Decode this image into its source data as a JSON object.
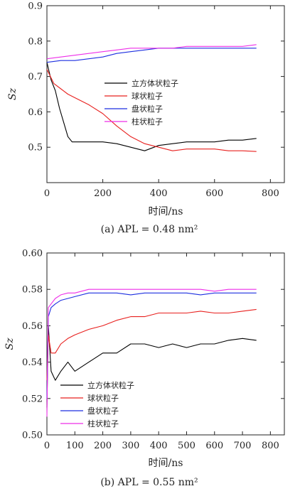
{
  "chart_data": [
    {
      "type": "line",
      "xlabel": "时间/ns",
      "ylabel": "Sz",
      "caption": "(a) APL = 0.48 nm²",
      "xlim": [
        0,
        850
      ],
      "ylim": [
        0.4,
        0.9
      ],
      "xticks": [
        "0",
        "200",
        "400",
        "600",
        "800"
      ],
      "yticks": [
        "0.5",
        "0.6",
        "0.7",
        "0.8",
        "0.9"
      ],
      "legend_position": "center-right",
      "series": [
        {
          "name": "立方体状粒子",
          "color": "#000000",
          "x": [
            0,
            15,
            30,
            45,
            60,
            75,
            90,
            110,
            130,
            160,
            200,
            250,
            300,
            350,
            400,
            450,
            500,
            550,
            600,
            650,
            700,
            750
          ],
          "y": [
            0.74,
            0.69,
            0.66,
            0.61,
            0.57,
            0.53,
            0.515,
            0.515,
            0.515,
            0.515,
            0.515,
            0.51,
            0.5,
            0.49,
            0.505,
            0.51,
            0.515,
            0.515,
            0.515,
            0.52,
            0.52,
            0.525
          ]
        },
        {
          "name": "球状粒子",
          "color": "#e8201e",
          "x": [
            0,
            25,
            50,
            75,
            100,
            150,
            200,
            250,
            300,
            350,
            400,
            450,
            500,
            550,
            600,
            650,
            700,
            750
          ],
          "y": [
            0.72,
            0.68,
            0.665,
            0.65,
            0.64,
            0.62,
            0.595,
            0.56,
            0.53,
            0.51,
            0.5,
            0.49,
            0.495,
            0.495,
            0.495,
            0.49,
            0.49,
            0.488
          ]
        },
        {
          "name": "盘状粒子",
          "color": "#1c2ee0",
          "x": [
            0,
            50,
            100,
            150,
            200,
            250,
            300,
            350,
            400,
            450,
            500,
            550,
            600,
            650,
            700,
            750
          ],
          "y": [
            0.74,
            0.745,
            0.745,
            0.75,
            0.755,
            0.765,
            0.77,
            0.775,
            0.78,
            0.78,
            0.78,
            0.78,
            0.78,
            0.78,
            0.78,
            0.78
          ]
        },
        {
          "name": "柱状粒子",
          "color": "#ee2ee8",
          "x": [
            0,
            50,
            100,
            150,
            200,
            250,
            300,
            350,
            400,
            450,
            500,
            550,
            600,
            650,
            700,
            750
          ],
          "y": [
            0.75,
            0.755,
            0.76,
            0.765,
            0.77,
            0.775,
            0.78,
            0.78,
            0.78,
            0.78,
            0.785,
            0.785,
            0.785,
            0.785,
            0.785,
            0.79
          ]
        }
      ]
    },
    {
      "type": "line",
      "xlabel": "时间/ns",
      "ylabel": "Sz",
      "caption": "(b) APL = 0.55 nm²",
      "xlim": [
        0,
        850
      ],
      "ylim": [
        0.5,
        0.6
      ],
      "xticks": [
        "0",
        "100",
        "200",
        "300",
        "400",
        "500",
        "600",
        "700",
        "800"
      ],
      "yticks": [
        "0.50",
        "0.52",
        "0.54",
        "0.56",
        "0.58",
        "0.60"
      ],
      "legend_position": "bottom-left",
      "series": [
        {
          "name": "立方体状粒子",
          "color": "#000000",
          "x": [
            0,
            5,
            15,
            30,
            50,
            75,
            100,
            150,
            200,
            250,
            300,
            350,
            400,
            450,
            500,
            550,
            600,
            650,
            700,
            750
          ],
          "y": [
            0.515,
            0.56,
            0.535,
            0.53,
            0.535,
            0.54,
            0.535,
            0.54,
            0.545,
            0.545,
            0.55,
            0.55,
            0.548,
            0.55,
            0.548,
            0.55,
            0.55,
            0.552,
            0.553,
            0.552
          ]
        },
        {
          "name": "球状粒子",
          "color": "#e8201e",
          "x": [
            0,
            5,
            15,
            30,
            50,
            75,
            100,
            150,
            200,
            250,
            300,
            350,
            400,
            450,
            500,
            550,
            600,
            650,
            700,
            750
          ],
          "y": [
            0.53,
            0.555,
            0.545,
            0.545,
            0.55,
            0.553,
            0.555,
            0.558,
            0.56,
            0.563,
            0.565,
            0.565,
            0.567,
            0.567,
            0.567,
            0.568,
            0.567,
            0.567,
            0.568,
            0.569
          ]
        },
        {
          "name": "盘状粒子",
          "color": "#1c2ee0",
          "x": [
            0,
            5,
            15,
            30,
            50,
            75,
            100,
            150,
            200,
            250,
            300,
            350,
            400,
            450,
            500,
            550,
            600,
            650,
            700,
            750
          ],
          "y": [
            0.52,
            0.565,
            0.57,
            0.572,
            0.574,
            0.575,
            0.576,
            0.578,
            0.578,
            0.578,
            0.577,
            0.578,
            0.578,
            0.578,
            0.578,
            0.577,
            0.578,
            0.578,
            0.578,
            0.578
          ]
        },
        {
          "name": "柱状粒子",
          "color": "#ee2ee8",
          "x": [
            0,
            5,
            15,
            30,
            50,
            75,
            100,
            150,
            200,
            250,
            300,
            350,
            400,
            450,
            500,
            550,
            600,
            650,
            700,
            750
          ],
          "y": [
            0.51,
            0.57,
            0.572,
            0.575,
            0.577,
            0.578,
            0.578,
            0.58,
            0.58,
            0.58,
            0.58,
            0.58,
            0.58,
            0.58,
            0.58,
            0.58,
            0.579,
            0.58,
            0.58,
            0.58
          ]
        }
      ]
    }
  ]
}
